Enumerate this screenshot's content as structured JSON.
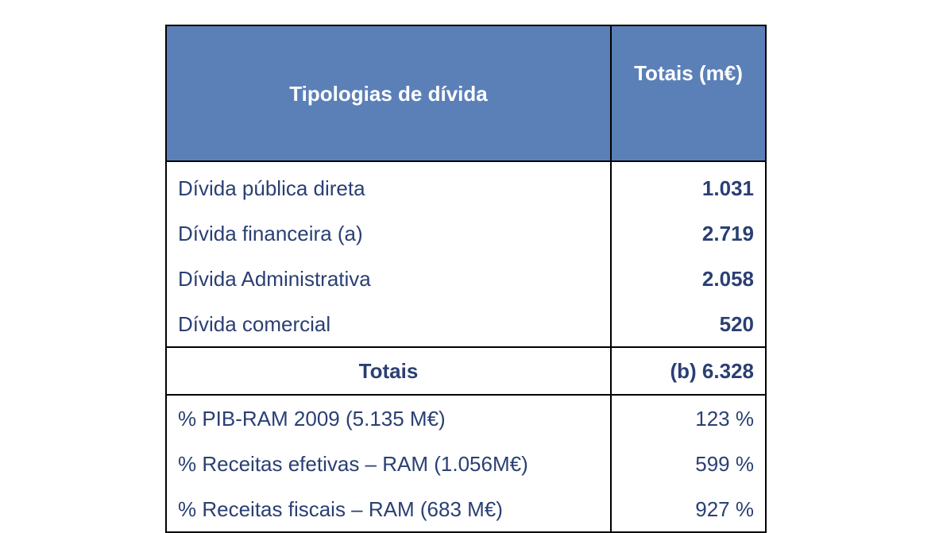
{
  "table": {
    "headers": {
      "type": "Tipologias de dívida",
      "total": "Totais (m€)"
    },
    "items": [
      {
        "label": "Dívida pública direta",
        "value": "1.031"
      },
      {
        "label": "Dívida financeira (a)",
        "value": "2.719"
      },
      {
        "label": "Dívida Administrativa",
        "value": "2.058"
      },
      {
        "label": "Dívida comercial",
        "value": "520"
      }
    ],
    "total": {
      "label": "Totais",
      "value": "(b) 6.328"
    },
    "ratios": [
      {
        "label": "% PIB-RAM 2009 (5.135 M€)",
        "value": "123 %"
      },
      {
        "label": "% Receitas efetivas – RAM (1.056M€)",
        "value": "599 %"
      },
      {
        "label": "% Receitas fiscais – RAM (683 M€)",
        "value": "927 %"
      }
    ]
  },
  "colors": {
    "header_bg": "#5b80b8",
    "header_text": "#ffffff",
    "body_text": "#2a3f73",
    "border": "#000000"
  }
}
